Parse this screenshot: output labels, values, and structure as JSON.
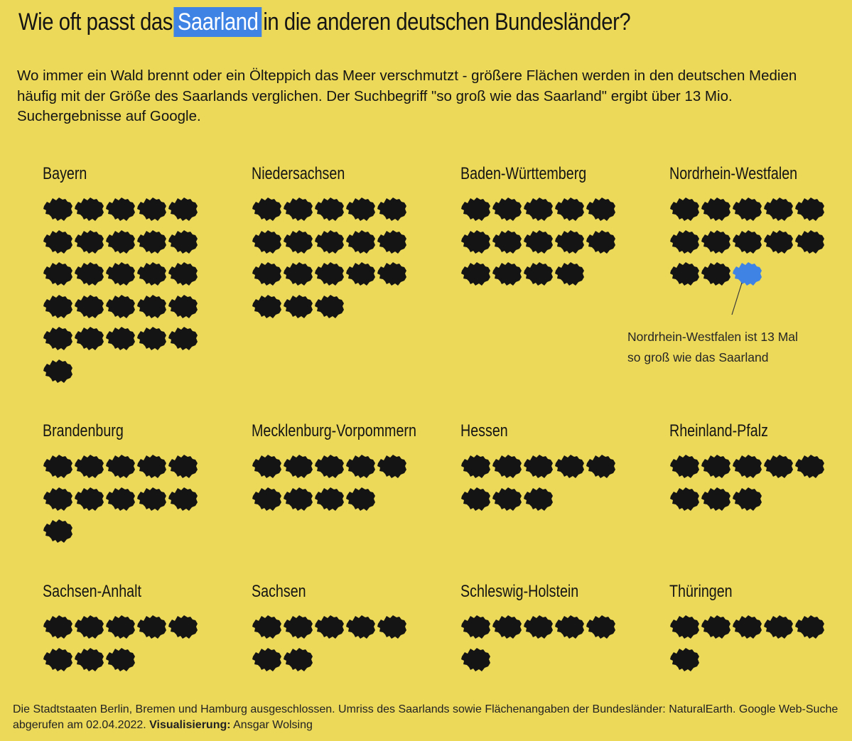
{
  "title": {
    "before": "Wie oft passt das",
    "highlight": "Saarland",
    "after": "in die anderen deutschen Bundesländer?"
  },
  "subtitle": "Wo immer ein Wald brennt oder ein Ölteppich das Meer verschmutzt - größere Flächen werden in den deutschen Medien häufig mit der Größe des Saarlands verglichen. Der Suchbegriff \"so groß wie das Saarland\" ergibt über 13 Mio. Suchergebnisse auf Google.",
  "colors": {
    "background": "#ecd95a",
    "icon": "#141414",
    "highlight": "#3f84e5"
  },
  "chart_data": {
    "type": "pictogram",
    "unit": "Saarland",
    "icons_per_row": 5,
    "states": [
      {
        "name": "Bayern",
        "value": 26
      },
      {
        "name": "Niedersachsen",
        "value": 18
      },
      {
        "name": "Baden-Württemberg",
        "value": 14
      },
      {
        "name": "Nordrhein-Westfalen",
        "value": 13,
        "highlight_icon": 13
      },
      {
        "name": "Brandenburg",
        "value": 11
      },
      {
        "name": "Mecklenburg-Vorpommern",
        "value": 9
      },
      {
        "name": "Hessen",
        "value": 8
      },
      {
        "name": "Rheinland-Pfalz",
        "value": 8
      },
      {
        "name": "Sachsen-Anhalt",
        "value": 8
      },
      {
        "name": "Sachsen",
        "value": 7
      },
      {
        "name": "Schleswig-Holstein",
        "value": 6
      },
      {
        "name": "Thüringen",
        "value": 6
      }
    ],
    "annotation": {
      "line1": "Nordrhein-Westfalen ist 13 Mal",
      "line2": "so groß wie das Saarland"
    }
  },
  "footer": {
    "text": "Die Stadtstaaten Berlin, Bremen und Hamburg ausgeschlossen. Umriss des Saarlands sowie Flächenangaben der Bundesländer: NaturalEarth. Google Web-Suche abgerufen am 02.04.2022.",
    "credit_label": "Visualisierung:",
    "credit_name": "Ansgar Wolsing"
  }
}
